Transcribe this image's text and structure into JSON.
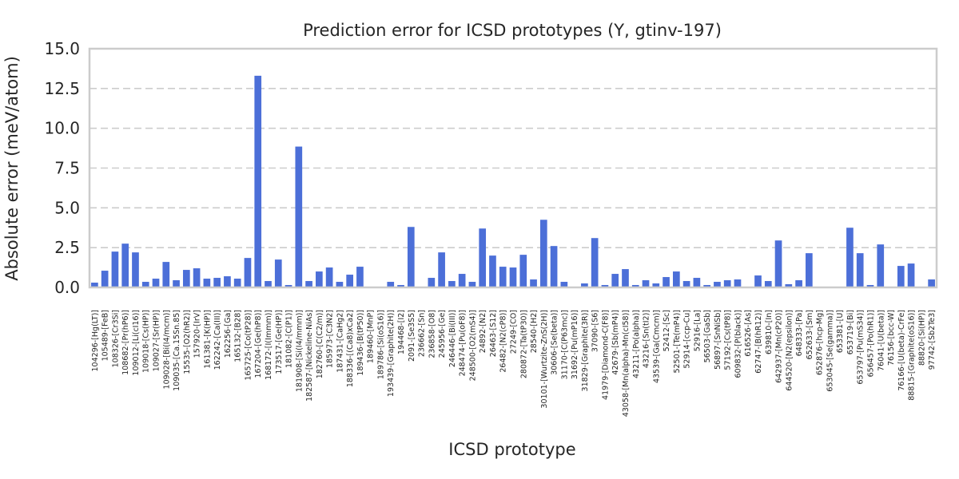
{
  "chart_data": {
    "type": "bar",
    "title": "Prediction error for ICSD prototypes (Y, gtinv-197)",
    "xlabel": "ICSD prototype",
    "ylabel": "Absolute error (meV/atom)",
    "ylim": [
      0,
      15
    ],
    "yticks": [
      "0.0",
      "2.5",
      "5.0",
      "7.5",
      "10.0",
      "12.5",
      "15.0"
    ],
    "grid": "y-dashed",
    "bar_color": "#4c6fd8",
    "categories": [
      "104296-[Hg(LT)]",
      "105489-[FeB]",
      "108326-[Cr3Si]",
      "108682-[Pr(hP6)]",
      "109012-[Li(cI16)]",
      "109018-[Cs(HP)]",
      "109027-[Sr(HP)]",
      "109028-[Bi(I4/mcm)]",
      "109035-[Ca.15Sn.85]",
      "15535-[O2(hR2)]",
      "157920-[IrV]",
      "161381-[K(HP)]",
      "162242-[Ca(III)]",
      "162256-[Ga]",
      "165132-[B28]",
      "165725-[Co(tP28)]",
      "167204-[Ge(hP8)]",
      "168172-[I(Immm)]",
      "173517-[Ge(HP)]",
      "181082-[C(P1)]",
      "181908-[Si(I4/mmm)]",
      "182587-[Nickeline-NiAs]",
      "182760-[C(C2/m)]",
      "185973-[C3N2]",
      "187431-[CaHg2]",
      "188336-[(Ca8)xCa2]",
      "189436-[B(tP50)]",
      "189460-[MnP]",
      "189786-[Si(oS16)]",
      "193439-[Graphite(2H)]",
      "194468-[I2]",
      "2091-[Se3S5]",
      "236662-[Sn]",
      "236858-[O8]",
      "245956-[Ge]",
      "246446-[Bi(III)]",
      "248474-[Pu(oF8)]",
      "248500-[O2(mS4)]",
      "24892-[N2]",
      "26463-[S12]",
      "26482-[N2(cP8)]",
      "27249-[CO]",
      "280872-[Ta(tP30)]",
      "28540-[H2]",
      "30101-[Wurtzite-ZnS(2H)]",
      "30606-[Se(beta)]",
      "31170-[C(P63mc)]",
      "31692-[Pu(mP16)]",
      "31829-[Graphite(3R)]",
      "37090-[S6]",
      "41979-[Diamond-C(F8)]",
      "42679-[Sb(mP4)]",
      "43058-[Mn(alpha)-Mn(cI58)]",
      "43211-[Po(alpha)]",
      "43216-[Sn(tI2)]",
      "43539-[Ga(Cmcm)]",
      "52412-[Sc]",
      "52501-[Te(mP4)]",
      "52914-[ccp-Cu]",
      "52916-[La]",
      "56503-[GaSb]",
      "56897-[SnNiSb]",
      "57192-[Cs(tP8)]",
      "609832-[P(black)]",
      "616526-[As]",
      "62747-[B(hR12)]",
      "639810-[In]",
      "642937-[Mn(cP20)]",
      "644520-[N2(epsilon)]",
      "648333-[Pa]",
      "652633-[Sm]",
      "652876-[hcp-Mg]",
      "653045-[Se(gamma)]",
      "653381-[U]",
      "653719-[Bi]",
      "653797-[Pu(mS34)]",
      "656457-[Po(hR1)]",
      "76041-[U(beta)]",
      "76156-[bcc-W]",
      "76166-[U(beta)-CrFe]",
      "88815-[Graphite(oS16)]",
      "88820-[Si(HP)]",
      "97742-[Sb2Te3]"
    ],
    "values": [
      0.3,
      1.05,
      2.25,
      2.75,
      2.2,
      0.35,
      0.55,
      1.6,
      0.45,
      1.1,
      1.2,
      0.55,
      0.6,
      0.7,
      0.55,
      1.85,
      13.3,
      0.4,
      1.75,
      0.15,
      8.85,
      0.4,
      1.0,
      1.25,
      0.35,
      0.8,
      1.3,
      0.0,
      0.0,
      0.35,
      0.15,
      3.8,
      0.0,
      0.6,
      2.2,
      0.4,
      0.85,
      0.35,
      3.7,
      2.0,
      1.3,
      1.25,
      2.05,
      0.5,
      4.25,
      2.6,
      0.35,
      0.0,
      0.25,
      3.1,
      0.15,
      0.85,
      1.15,
      0.15,
      0.45,
      0.25,
      0.65,
      1.0,
      0.4,
      0.6,
      0.15,
      0.35,
      0.45,
      0.5,
      0.0,
      0.75,
      0.4,
      2.95,
      0.2,
      0.45,
      2.15,
      0.0,
      0.0,
      0.0,
      3.75,
      2.15,
      0.15,
      2.7,
      0.0,
      1.35,
      1.5,
      0.0,
      0.5
    ]
  }
}
